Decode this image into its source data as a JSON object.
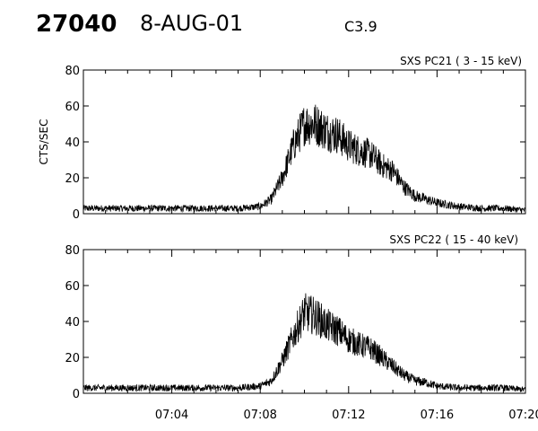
{
  "header": {
    "event_id": "27040",
    "date": "8-AUG-01",
    "flare_class": "C3.9"
  },
  "chart_data": [
    {
      "type": "line",
      "title": "SXS PC21  (  3 - 15 keV)",
      "ylabel": "CTS/SEC",
      "xlabel": "",
      "ylim": [
        0,
        80
      ],
      "yticks": [
        "0",
        "20",
        "40",
        "60",
        "80"
      ],
      "xlim": [
        "07:00",
        "07:20"
      ],
      "xticks": [
        "07:04",
        "07:08",
        "07:12",
        "07:16",
        "07:20"
      ],
      "series": [
        {
          "x": [
            "07:00",
            "07:01",
            "07:02",
            "07:03",
            "07:04",
            "07:05",
            "07:06",
            "07:07",
            "07:08",
            "07:08:30",
            "07:09",
            "07:09:30",
            "07:10",
            "07:10:30",
            "07:11",
            "07:11:30",
            "07:12",
            "07:12:30",
            "07:13",
            "07:13:30",
            "07:14",
            "07:14:30",
            "07:15",
            "07:15:30",
            "07:16",
            "07:17",
            "07:18",
            "07:19",
            "07:20"
          ],
          "values": [
            3,
            3,
            3,
            3,
            3,
            3,
            3,
            3,
            4,
            8,
            20,
            38,
            50,
            50,
            46,
            44,
            38,
            35,
            33,
            27,
            24,
            15,
            10,
            8,
            6,
            4,
            3,
            3,
            2
          ]
        }
      ]
    },
    {
      "type": "line",
      "title": "SXS PC22  ( 15 - 40 keV)",
      "ylabel": "",
      "xlabel": "",
      "ylim": [
        0,
        80
      ],
      "yticks": [
        "0",
        "20",
        "40",
        "60",
        "80"
      ],
      "xlim": [
        "07:00",
        "07:20"
      ],
      "xticks": [
        "07:04",
        "07:08",
        "07:12",
        "07:16",
        "07:20"
      ],
      "series": [
        {
          "x": [
            "07:00",
            "07:01",
            "07:02",
            "07:03",
            "07:04",
            "07:05",
            "07:06",
            "07:07",
            "07:08",
            "07:08:30",
            "07:09",
            "07:09:30",
            "07:10",
            "07:10:30",
            "07:11",
            "07:11:30",
            "07:12",
            "07:12:30",
            "07:13",
            "07:13:30",
            "07:14",
            "07:14:30",
            "07:15",
            "07:15:30",
            "07:16",
            "07:17",
            "07:18",
            "07:19",
            "07:20"
          ],
          "values": [
            3,
            3,
            3,
            3,
            3,
            3,
            3,
            3,
            4,
            7,
            18,
            32,
            45,
            43,
            38,
            35,
            30,
            27,
            25,
            20,
            15,
            10,
            7,
            6,
            4,
            3,
            3,
            3,
            2
          ]
        }
      ]
    }
  ]
}
